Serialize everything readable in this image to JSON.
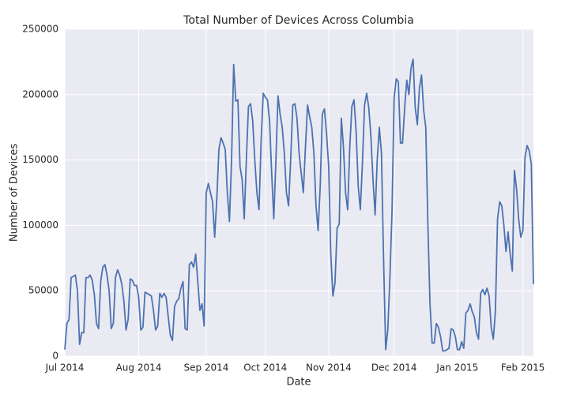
{
  "chart_data": {
    "type": "line",
    "title": "Total Number of Devices Across Columbia",
    "x_label": "Date",
    "y_label": "Number of Devices",
    "categories": [
      "Jul 2014",
      null,
      null,
      null,
      null,
      null,
      null,
      null,
      null,
      null,
      null,
      null,
      null,
      null,
      null,
      null,
      null,
      null,
      null,
      null,
      null,
      null,
      null,
      null,
      null,
      null,
      null,
      null,
      null,
      null,
      null,
      null,
      null,
      null,
      null,
      "Aug 2014",
      null,
      null,
      null,
      null,
      null,
      null,
      null,
      null,
      null,
      null,
      null,
      null,
      null,
      null,
      null,
      null,
      null,
      null,
      null,
      null,
      null,
      null,
      null,
      null,
      null,
      null,
      null,
      null,
      null,
      null,
      null,
      "Sep 2014",
      null,
      null,
      null,
      null,
      null,
      null,
      null,
      null,
      null,
      null,
      null,
      null,
      null,
      null,
      null,
      null,
      null,
      null,
      null,
      null,
      null,
      null,
      null,
      null,
      null,
      null,
      null,
      "Oct 2014",
      null,
      null,
      null,
      null,
      null,
      null,
      null,
      null,
      null,
      null,
      null,
      null,
      null,
      null,
      null,
      null,
      null,
      null,
      null,
      null,
      null,
      null,
      null,
      null,
      null,
      null,
      null,
      null,
      null,
      "Nov 2014",
      null,
      null,
      null,
      null,
      null,
      null,
      null,
      null,
      null,
      null,
      null,
      null,
      null,
      null,
      null,
      null,
      null,
      null,
      null,
      null,
      null,
      null,
      null,
      null,
      null,
      null,
      null,
      null,
      null,
      null,
      "Dec 2014",
      null,
      null,
      null,
      null,
      null,
      null,
      null,
      null,
      null,
      null,
      null,
      null,
      null,
      null,
      null,
      null,
      null,
      null,
      null,
      null,
      null,
      null,
      null,
      null,
      null,
      null,
      null,
      null,
      null,
      "Jan 2015",
      null,
      null,
      null,
      null,
      null,
      null,
      null,
      null,
      null,
      null,
      null,
      null,
      null,
      null,
      null,
      null,
      null,
      null,
      null,
      null,
      null,
      null,
      null,
      null,
      null,
      null,
      null,
      null,
      null,
      null,
      "Feb 2015",
      null,
      null,
      null,
      null,
      null
    ],
    "series": [
      {
        "name": "Devices",
        "color": "#4c72b0",
        "values": [
          5000,
          25000,
          28000,
          60000,
          61000,
          62000,
          50000,
          9000,
          18000,
          18000,
          60000,
          60000,
          62000,
          58000,
          47000,
          25000,
          21000,
          57000,
          68000,
          70000,
          62000,
          50000,
          21000,
          25000,
          60000,
          66000,
          62000,
          55000,
          42000,
          20000,
          28000,
          59000,
          58000,
          54000,
          54000,
          45000,
          20000,
          22000,
          49000,
          48000,
          47000,
          46000,
          35000,
          20000,
          23000,
          48000,
          45000,
          48000,
          45000,
          30000,
          16000,
          12000,
          38000,
          42000,
          44000,
          52000,
          57000,
          21000,
          20000,
          70000,
          72000,
          68000,
          78000,
          57000,
          35000,
          40000,
          23000,
          125000,
          132000,
          125000,
          118000,
          91000,
          120000,
          158000,
          167000,
          163000,
          158000,
          125000,
          103000,
          150000,
          223000,
          195000,
          196000,
          145000,
          135000,
          105000,
          150000,
          191000,
          193000,
          180000,
          150000,
          125000,
          112000,
          165000,
          201000,
          198000,
          196000,
          180000,
          140000,
          105000,
          150000,
          199000,
          185000,
          175000,
          155000,
          125000,
          115000,
          150000,
          192000,
          193000,
          182000,
          155000,
          140000,
          125000,
          160000,
          192000,
          183000,
          175000,
          155000,
          115000,
          96000,
          130000,
          185000,
          189000,
          170000,
          145000,
          78000,
          46000,
          56000,
          98000,
          101000,
          182000,
          160000,
          125000,
          112000,
          160000,
          191000,
          196000,
          172000,
          130000,
          112000,
          148000,
          192000,
          201000,
          190000,
          168000,
          135000,
          108000,
          150000,
          175000,
          155000,
          75000,
          5000,
          20000,
          60000,
          110000,
          197000,
          212000,
          210000,
          163000,
          163000,
          190000,
          211000,
          200000,
          220000,
          227000,
          190000,
          177000,
          205000,
          215000,
          188000,
          175000,
          100000,
          40000,
          10000,
          10000,
          25000,
          22000,
          15000,
          4000,
          4000,
          5000,
          6000,
          21000,
          20000,
          15000,
          5000,
          5000,
          11000,
          6000,
          33000,
          35000,
          40000,
          34000,
          30000,
          18000,
          13000,
          48000,
          51000,
          47000,
          52000,
          46000,
          22000,
          13000,
          35000,
          105000,
          118000,
          115000,
          100000,
          80000,
          95000,
          78000,
          65000,
          142000,
          128000,
          105000,
          91000,
          96000,
          152000,
          161000,
          157000,
          147000,
          55000
        ]
      }
    ],
    "ylim": [
      0,
      250000
    ],
    "yticks": [
      0,
      50000,
      100000,
      150000,
      200000,
      250000
    ],
    "grid": true
  }
}
